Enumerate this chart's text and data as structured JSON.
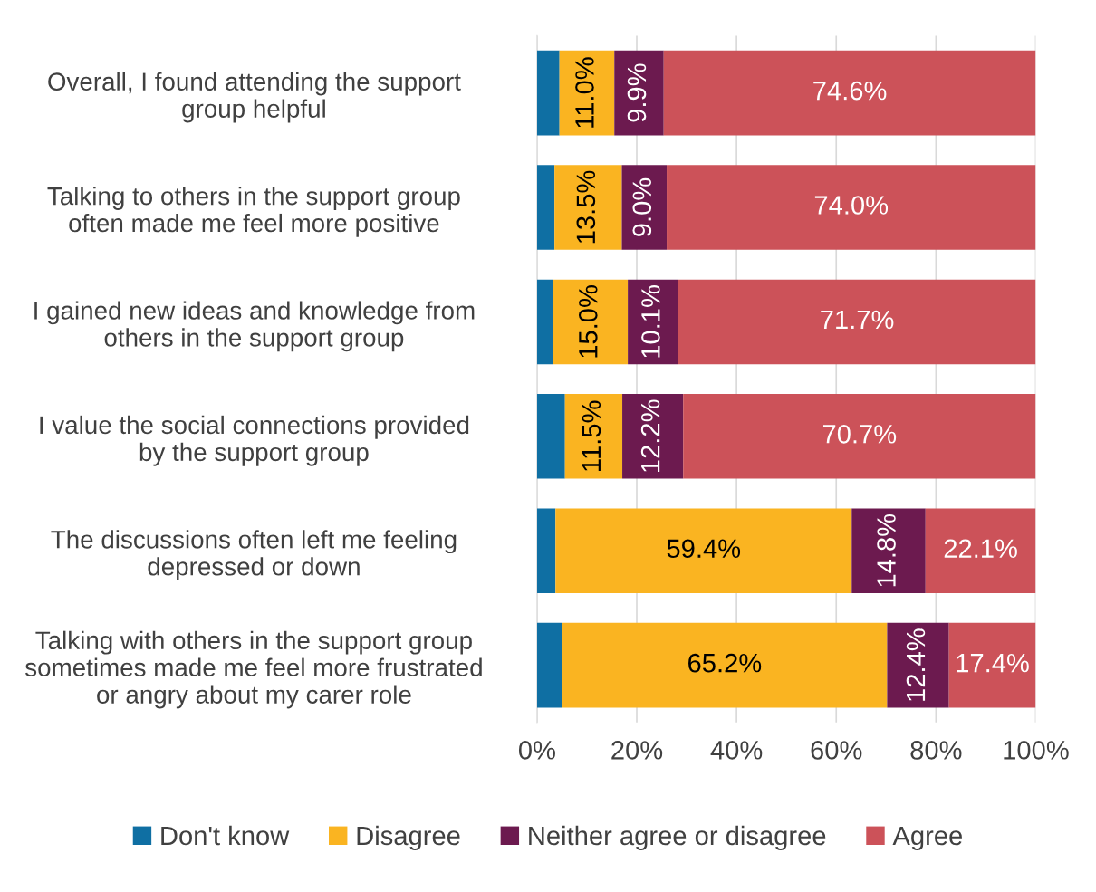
{
  "chart_data": {
    "type": "bar",
    "orientation": "horizontal",
    "stacked": true,
    "categories": [
      "Overall, I found attending the support\ngroup helpful",
      "Talking to others in the support group\noften made me feel more positive",
      "I gained new ideas and knowledge from\nothers in the support group",
      "I value the social connections provided\nby the support group",
      "The discussions often left me feeling\ndepressed or down",
      "Talking with others in the support group\nsometimes made me feel more frustrated\nor angry about my carer role"
    ],
    "series": [
      {
        "name": "Don't know",
        "color": "#0f6fa3",
        "values": [
          4.5,
          3.5,
          3.2,
          5.6,
          3.7,
          5.0
        ],
        "value_labels": [
          null,
          null,
          null,
          null,
          null,
          null
        ]
      },
      {
        "name": "Disagree",
        "color": "#fab421",
        "values": [
          11.0,
          13.5,
          15.0,
          11.5,
          59.4,
          65.2
        ],
        "value_labels": [
          "11.0%",
          "13.5%",
          "15.0%",
          "11.5%",
          "59.4%",
          "65.2%"
        ]
      },
      {
        "name": "Neither agree or disagree",
        "color": "#6c1a4f",
        "values": [
          9.9,
          9.0,
          10.1,
          12.2,
          14.8,
          12.4
        ],
        "value_labels": [
          "9.9%",
          "9.0%",
          "10.1%",
          "12.2%",
          "14.8%",
          "12.4%"
        ]
      },
      {
        "name": "Agree",
        "color": "#cc5259",
        "values": [
          74.6,
          74.0,
          71.7,
          70.7,
          22.1,
          17.4
        ],
        "value_labels": [
          "74.6%",
          "74.0%",
          "71.7%",
          "70.7%",
          "22.1%",
          "17.4%"
        ]
      }
    ],
    "xlim": [
      0,
      100
    ],
    "xticks": [
      {
        "value": 0,
        "label": "0%"
      },
      {
        "value": 20,
        "label": "20%"
      },
      {
        "value": 40,
        "label": "40%"
      },
      {
        "value": 60,
        "label": "60%"
      },
      {
        "value": 80,
        "label": "80%"
      },
      {
        "value": 100,
        "label": "100%"
      }
    ],
    "grid": "x",
    "legend": "bottom"
  }
}
